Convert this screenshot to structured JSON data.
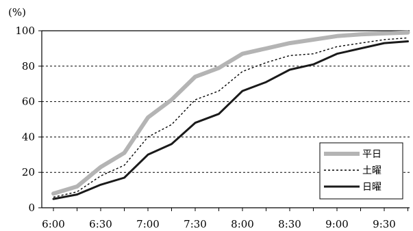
{
  "chart_data": {
    "type": "line",
    "y_unit_label": "(%)",
    "ylim": [
      0,
      100
    ],
    "yticks": [
      0,
      20,
      40,
      60,
      80,
      100
    ],
    "grid": "horizontal-dashed",
    "legend_position": "bottom-right",
    "x": [
      "6:00",
      "6:15",
      "6:30",
      "6:45",
      "7:00",
      "7:15",
      "7:30",
      "7:45",
      "8:00",
      "8:15",
      "8:30",
      "8:45",
      "9:00",
      "9:15",
      "9:30",
      "9:45"
    ],
    "x_tick_labels": [
      "6:00",
      "6:30",
      "7:00",
      "7:30",
      "8:00",
      "8:30",
      "9:00",
      "9:30"
    ],
    "series": [
      {
        "name": "平日",
        "color": "#b4b4b4",
        "style": "thick-solid",
        "values": [
          8,
          12,
          23,
          31,
          51,
          61,
          74,
          79,
          87,
          90,
          93,
          95,
          97,
          98,
          98.5,
          99
        ]
      },
      {
        "name": "土曜",
        "color": "#000000",
        "style": "dotted",
        "values": [
          6,
          9,
          18,
          24,
          40,
          47,
          61,
          66,
          77,
          82,
          86,
          87,
          91,
          93,
          95,
          96
        ]
      },
      {
        "name": "日曜",
        "color": "#1a1a1a",
        "style": "solid",
        "values": [
          5,
          7.5,
          13,
          17,
          30,
          36,
          48,
          53,
          66,
          71,
          78,
          81,
          87,
          90,
          93,
          94
        ]
      }
    ]
  }
}
